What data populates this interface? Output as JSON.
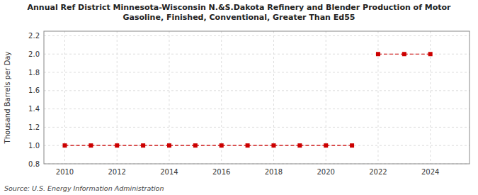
{
  "chart_data": {
    "type": "scatter",
    "title": "Annual Ref District Minnesota-Wisconsin N.&S.Dakota Refinery and Blender Production of Motor\nGasoline, Finished, Conventional, Greater Than Ed55",
    "ylabel": "Thousand Barrels per Day",
    "source": "Source: U.S. Energy Information Administration",
    "x": [
      2010,
      2011,
      2012,
      2013,
      2014,
      2015,
      2016,
      2017,
      2018,
      2019,
      2020,
      2021,
      2022,
      2023,
      2024
    ],
    "values": [
      1.0,
      1.0,
      1.0,
      1.0,
      1.0,
      1.0,
      1.0,
      1.0,
      1.0,
      1.0,
      1.0,
      1.0,
      2.0,
      2.0,
      2.0
    ],
    "color": "#cc0000",
    "marker": "square",
    "line_style": "dashed",
    "xlim": [
      2009.2,
      2025.5
    ],
    "ylim": [
      0.8,
      2.25
    ],
    "xticks": [
      2010,
      2012,
      2014,
      2016,
      2018,
      2020,
      2022,
      2024
    ],
    "yticks": [
      0.8,
      {
        "value": 1.0,
        "label": "1.0"
      },
      1.2,
      1.4,
      1.6,
      1.8,
      {
        "value": 2.0,
        "label": "2.0"
      },
      2.2
    ],
    "grid": true
  }
}
